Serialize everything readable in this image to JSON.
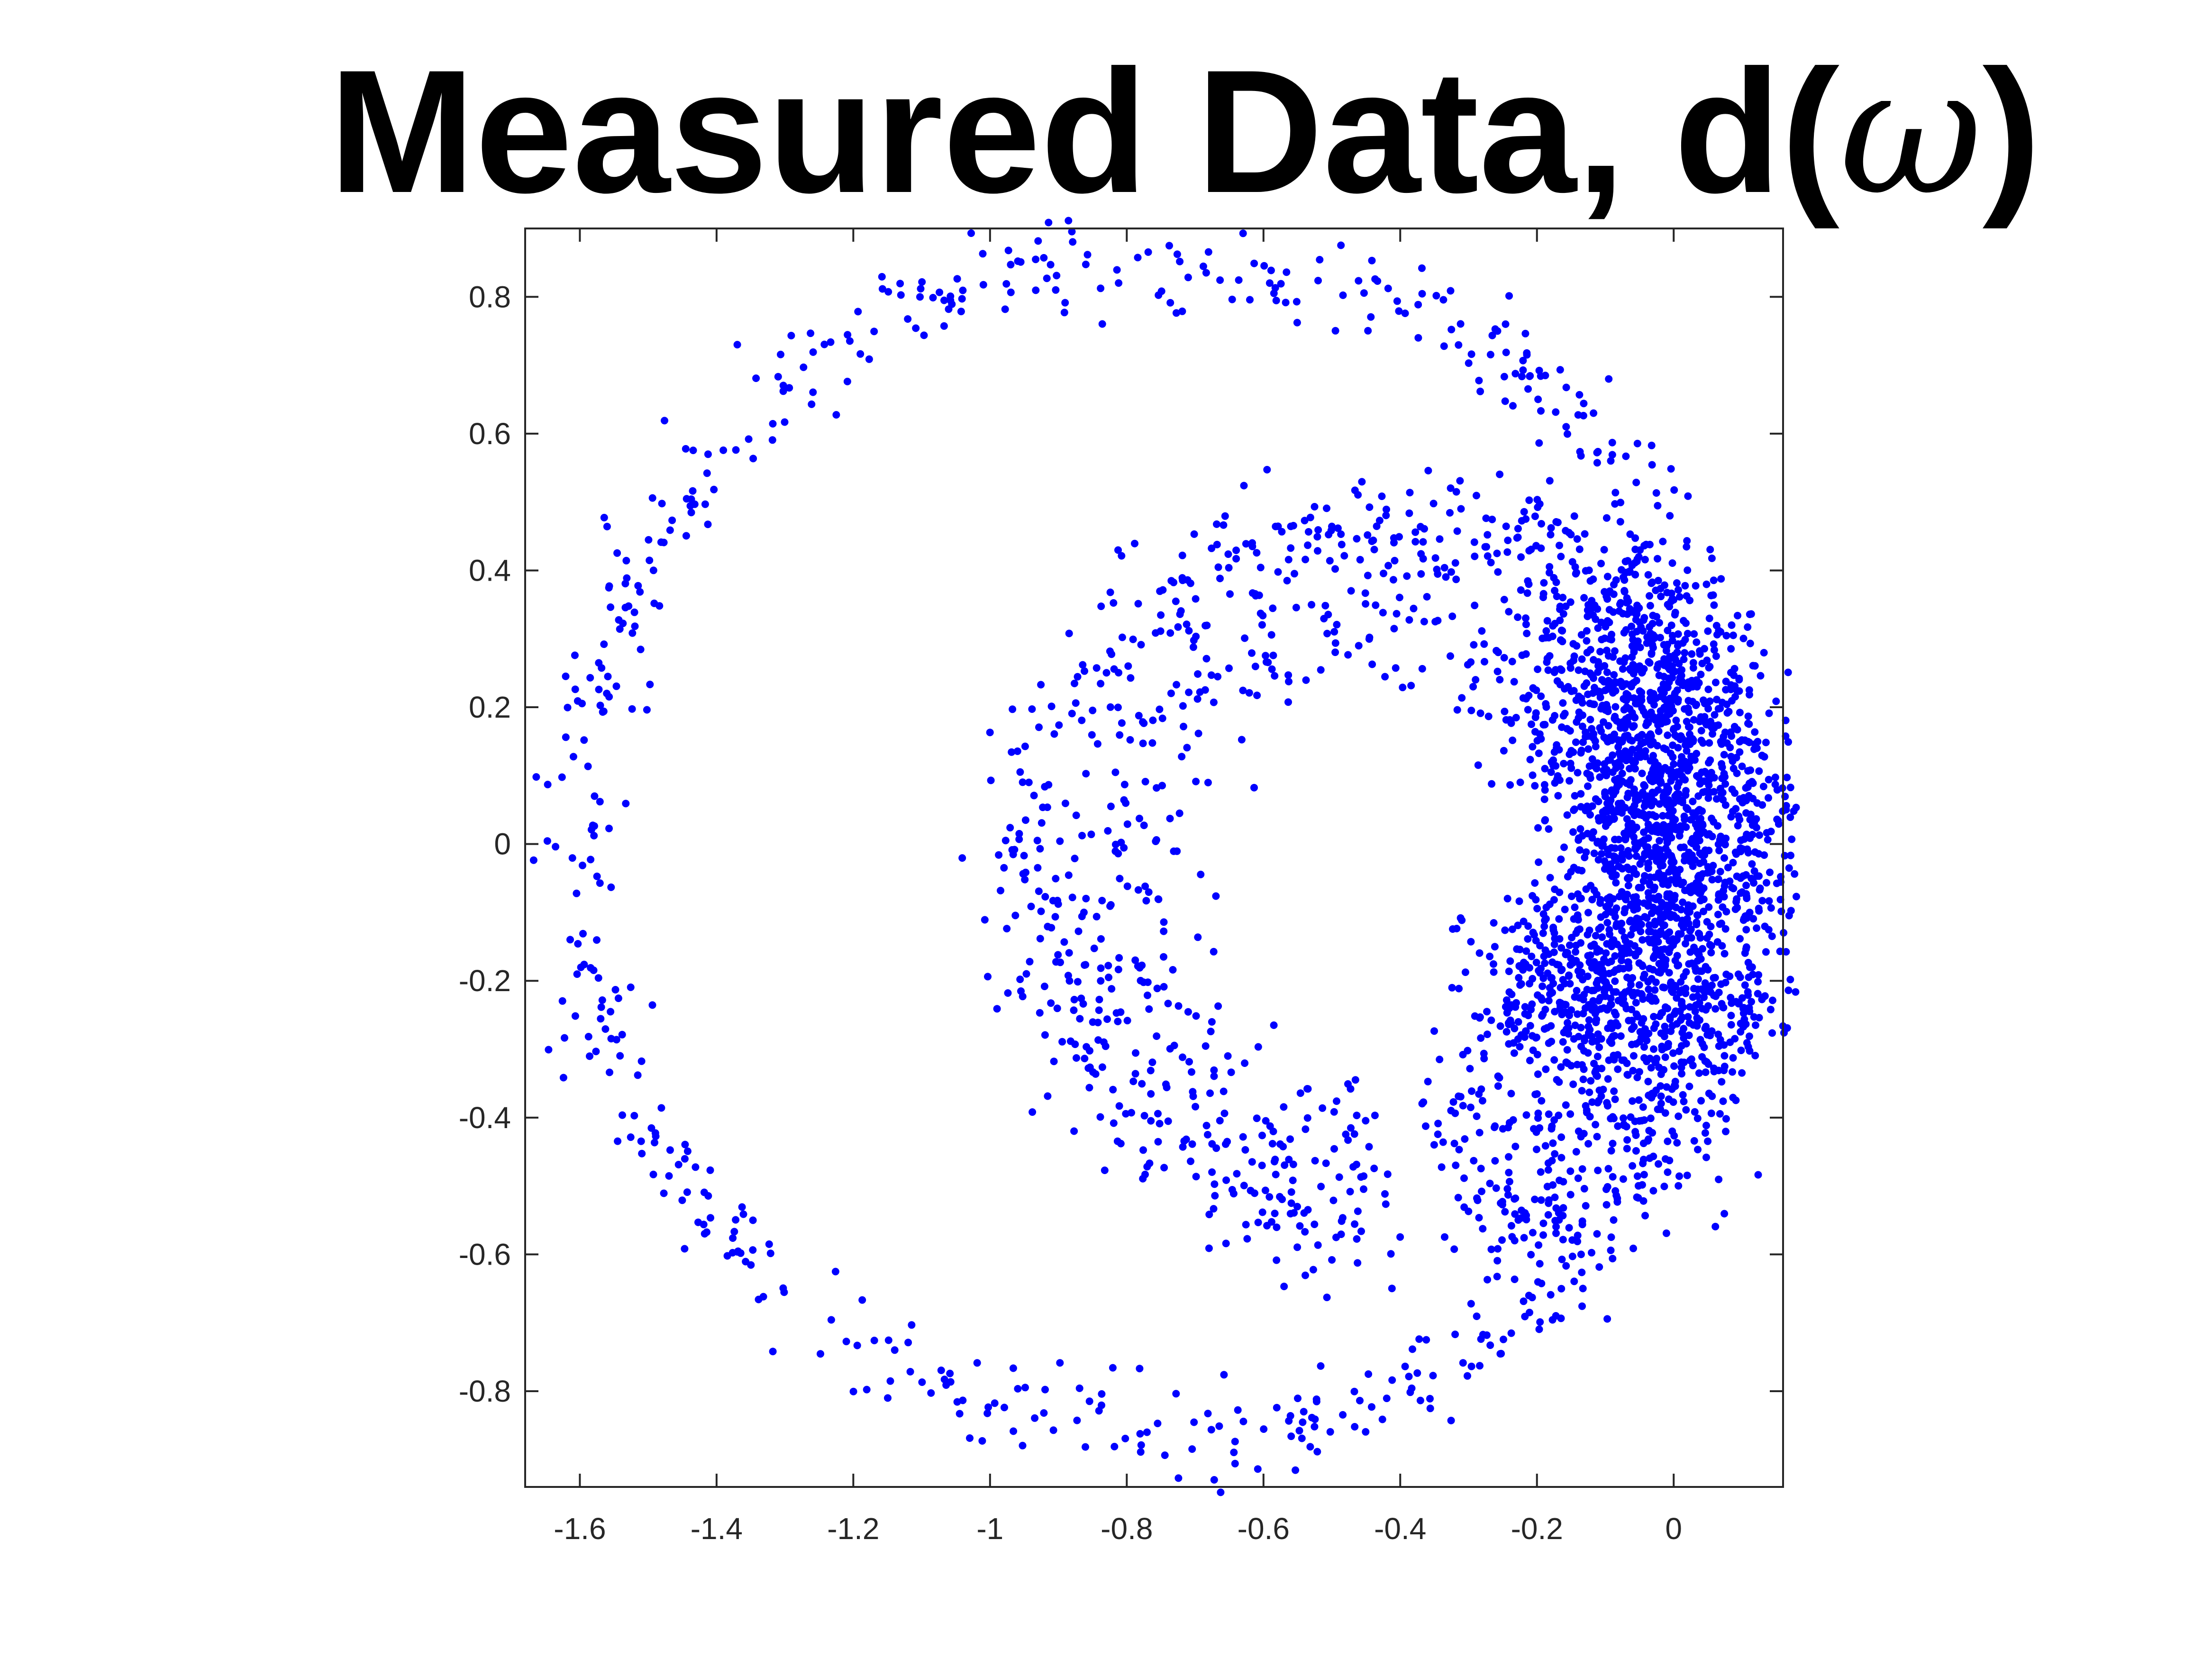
{
  "chart_data": {
    "type": "scatter",
    "title": "Measured Data, d(",
    "title_symbol": "ω",
    "title_close": ")",
    "xlabel": "",
    "ylabel": "",
    "xlim": [
      -1.68,
      0.16
    ],
    "ylim": [
      -0.94,
      0.9
    ],
    "x_ticks": [
      -1.6,
      -1.4,
      -1.2,
      -1,
      -0.8,
      -0.6,
      -0.4,
      -0.2,
      0
    ],
    "x_tick_labels": [
      "-1.6",
      "-1.4",
      "-1.2",
      "-1",
      "-0.8",
      "-0.6",
      "-0.4",
      "-0.2",
      "0"
    ],
    "y_ticks": [
      0.8,
      0.6,
      0.4,
      0.2,
      0,
      -0.2,
      -0.4,
      -0.6,
      -0.8
    ],
    "y_tick_labels": [
      "0.8",
      "0.6",
      "0.4",
      "0.2",
      "0",
      "-0.2",
      "-0.4",
      "-0.6",
      "-0.8"
    ],
    "grid": false,
    "legend": "none",
    "marker_color": "#0000ff",
    "series": [
      {
        "rings": [
          {
            "center": [
              -0.74,
              0.0
            ],
            "radius": 0.86,
            "spread": 0.035,
            "theta_range_deg": [
              -180,
              180
            ],
            "count": 700
          },
          {
            "center": [
              -0.43,
              -0.04
            ],
            "radius": 0.51,
            "spread": 0.045,
            "theta_range_deg": [
              -80,
              275
            ],
            "count": 650
          },
          {
            "center": [
              -0.43,
              -0.05
            ],
            "radius": 0.38,
            "spread": 0.055,
            "theta_range_deg": [
              -80,
              270
            ],
            "count": 450
          },
          {
            "center": [
              -0.43,
              -0.05
            ],
            "radius": 0.56,
            "spread": 0.04,
            "theta_range_deg": [
              -70,
              70
            ],
            "count": 350
          }
        ],
        "clusters": [
          {
            "center": [
              -0.03,
              0.0
            ],
            "spread": [
              0.06,
              0.16
            ],
            "count": 900
          },
          {
            "center": [
              -0.12,
              -0.22
            ],
            "spread": [
              0.09,
              0.08
            ],
            "count": 450
          },
          {
            "center": [
              -0.1,
              0.2
            ],
            "spread": [
              0.08,
              0.1
            ],
            "count": 350
          }
        ]
      }
    ]
  }
}
